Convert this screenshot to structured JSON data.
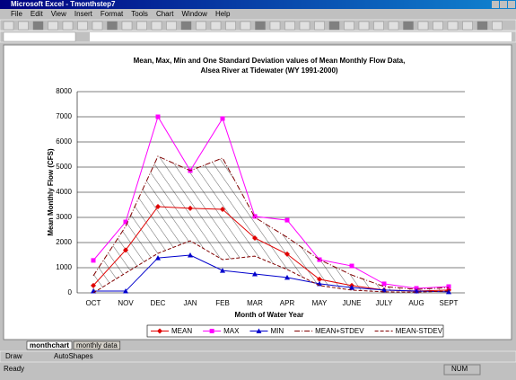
{
  "window": {
    "title": "Microsoft Excel - Tmonthstep7",
    "menu": [
      "File",
      "Edit",
      "View",
      "Insert",
      "Format",
      "Tools",
      "Chart",
      "Window",
      "Help"
    ],
    "sheet_tabs": [
      "monthchart",
      "monthly data"
    ],
    "draw_toolbar": [
      "Draw",
      "AutoShapes"
    ],
    "status": "Ready",
    "status_num": "NUM"
  },
  "chart_data": {
    "type": "line",
    "title": "Mean, Max, Min and One Standard Deviation values of Mean Monthly Flow Data,",
    "subtitle": "Alsea River at Tidewater (WY 1991-2000)",
    "x_label": "Month of Water Year",
    "y_label": "Mean Monthly Flow (CFS)",
    "categories": [
      "OCT",
      "NOV",
      "DEC",
      "JAN",
      "FEB",
      "MAR",
      "APR",
      "MAY",
      "JUNE",
      "JULY",
      "AUG",
      "SEPT"
    ],
    "ylim": [
      0,
      8000
    ],
    "yticks": [
      0,
      1000,
      2000,
      3000,
      4000,
      5000,
      6000,
      7000,
      8000
    ],
    "grid": true,
    "legend": "bottom",
    "series": [
      {
        "name": "MEAN",
        "color": "#e00000",
        "marker": "diamond",
        "dash": "solid",
        "values": [
          290,
          1700,
          3430,
          3360,
          3320,
          2180,
          1540,
          540,
          290,
          110,
          70,
          110
        ]
      },
      {
        "name": "MAX",
        "color": "#ff00ff",
        "marker": "square",
        "dash": "solid",
        "values": [
          1290,
          2820,
          7000,
          4860,
          6930,
          3040,
          2890,
          1320,
          1070,
          360,
          180,
          250
        ]
      },
      {
        "name": "MIN",
        "color": "#0000cc",
        "marker": "triangle",
        "dash": "solid",
        "values": [
          70,
          70,
          1390,
          1500,
          890,
          750,
          610,
          360,
          210,
          110,
          70,
          40
        ]
      },
      {
        "name": "MEAN+STDEV",
        "color": "#800000",
        "marker": "none",
        "dash": "dashdot",
        "values": [
          680,
          2640,
          5430,
          4860,
          5360,
          3000,
          2210,
          1320,
          710,
          250,
          140,
          210
        ]
      },
      {
        "name": "MEAN-STDEV",
        "color": "#800000",
        "marker": "none",
        "dash": "dash",
        "values": [
          0,
          790,
          1570,
          2070,
          1320,
          1460,
          930,
          290,
          110,
          40,
          30,
          70
        ]
      }
    ]
  }
}
